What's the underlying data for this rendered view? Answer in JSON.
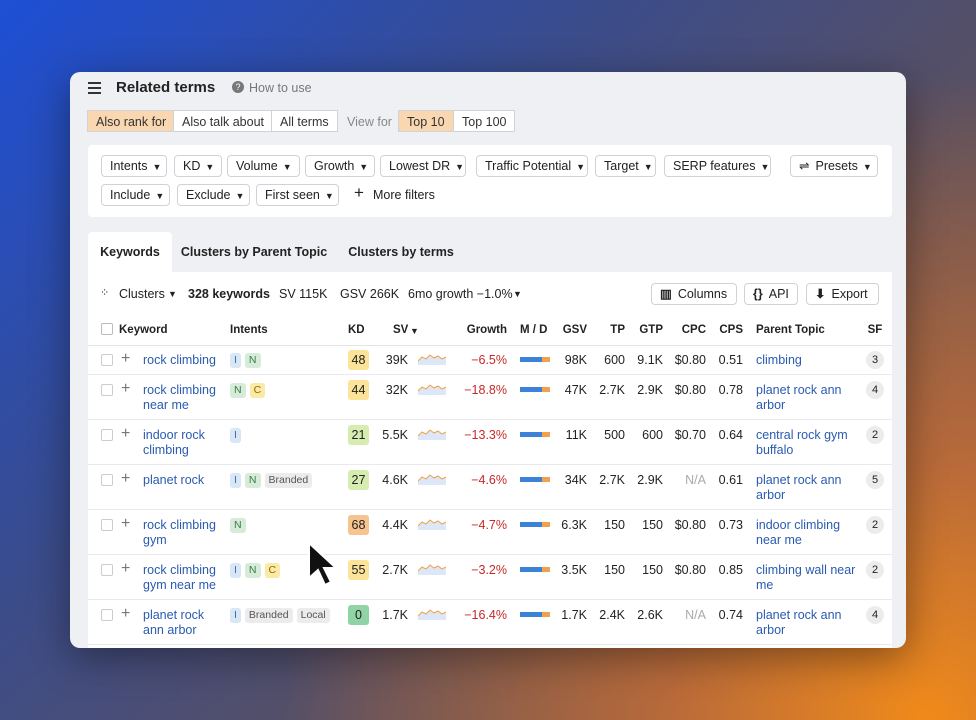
{
  "header": {
    "title": "Related terms",
    "help": "How to use"
  },
  "mode_tabs": [
    "Also rank for",
    "Also talk about",
    "All terms"
  ],
  "view_for": {
    "label": "View for",
    "options": [
      "Top 10",
      "Top 100"
    ]
  },
  "filters": {
    "row1": [
      "Intents",
      "KD",
      "Volume",
      "Growth",
      "Lowest DR",
      "Traffic Potential",
      "Target",
      "SERP features"
    ],
    "presets": "Presets",
    "row2": [
      "Include",
      "Exclude",
      "First seen"
    ],
    "more": "More filters"
  },
  "tabs": [
    "Keywords",
    "Clusters by Parent Topic",
    "Clusters by terms"
  ],
  "toolbar": {
    "clusters": "Clusters",
    "count": "328 keywords",
    "sv": "SV 115K",
    "gsv": "GSV 266K",
    "growth": "6mo growth −1.0%",
    "buttons": [
      "Columns",
      "API",
      "Export"
    ]
  },
  "table": {
    "columns": [
      "Keyword",
      "Intents",
      "KD",
      "SV",
      "Growth",
      "M / D",
      "GSV",
      "TP",
      "GTP",
      "CPC",
      "CPS",
      "Parent Topic",
      "SF"
    ],
    "rows": [
      {
        "keyword": "rock climbing",
        "intents": [
          "I",
          "N"
        ],
        "kd": "48",
        "sv": "39K",
        "growth": "−6.5%",
        "gsv": "98K",
        "tp": "600",
        "gtp": "9.1K",
        "cpc": "$0.80",
        "cps": "0.51",
        "parent_topic": "climbing",
        "sf": "3"
      },
      {
        "keyword": "rock climbing near me",
        "intents": [
          "N",
          "C"
        ],
        "kd": "44",
        "sv": "32K",
        "growth": "−18.8%",
        "gsv": "47K",
        "tp": "2.7K",
        "gtp": "2.9K",
        "cpc": "$0.80",
        "cps": "0.78",
        "parent_topic": "planet rock ann arbor",
        "sf": "4"
      },
      {
        "keyword": "indoor rock climbing",
        "intents": [
          "I"
        ],
        "kd": "21",
        "sv": "5.5K",
        "growth": "−13.3%",
        "gsv": "11K",
        "tp": "500",
        "gtp": "600",
        "cpc": "$0.70",
        "cps": "0.64",
        "parent_topic": "central rock gym buffalo",
        "sf": "2"
      },
      {
        "keyword": "planet rock",
        "intents": [
          "I",
          "N",
          "Branded"
        ],
        "kd": "27",
        "sv": "4.6K",
        "growth": "−4.6%",
        "gsv": "34K",
        "tp": "2.7K",
        "gtp": "2.9K",
        "cpc": "N/A",
        "cps": "0.61",
        "parent_topic": "planet rock ann arbor",
        "sf": "5"
      },
      {
        "keyword": "rock climbing gym",
        "intents": [
          "N"
        ],
        "kd": "68",
        "sv": "4.4K",
        "growth": "−4.7%",
        "gsv": "6.3K",
        "tp": "150",
        "gtp": "150",
        "cpc": "$0.80",
        "cps": "0.73",
        "parent_topic": "indoor climbing near me",
        "sf": "2"
      },
      {
        "keyword": "rock climbing gym near me",
        "intents": [
          "I",
          "N",
          "C"
        ],
        "kd": "55",
        "sv": "2.7K",
        "growth": "−3.2%",
        "gsv": "3.5K",
        "tp": "150",
        "gtp": "150",
        "cpc": "$0.80",
        "cps": "0.85",
        "parent_topic": "climbing wall near me",
        "sf": "2"
      },
      {
        "keyword": "planet rock ann arbor",
        "intents": [
          "I",
          "Branded",
          "Local"
        ],
        "kd": "0",
        "sv": "1.7K",
        "growth": "−16.4%",
        "gsv": "1.7K",
        "tp": "2.4K",
        "gtp": "2.6K",
        "cpc": "N/A",
        "cps": "0.74",
        "parent_topic": "planet rock ann arbor",
        "sf": "4"
      }
    ]
  }
}
